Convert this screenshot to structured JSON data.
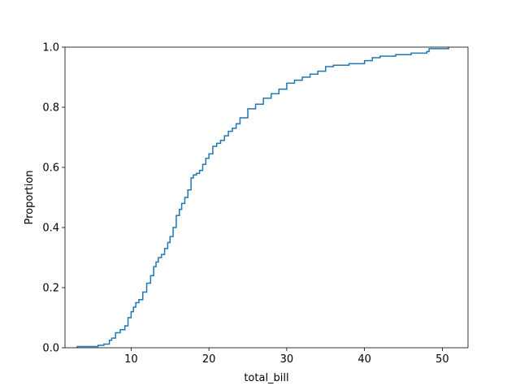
{
  "chart_data": {
    "type": "line",
    "subtype": "ecdf",
    "title": "",
    "xlabel": "total_bill",
    "ylabel": "Proportion",
    "xlim": [
      1.5,
      53.3
    ],
    "ylim": [
      0,
      1.0
    ],
    "xticks": [
      10,
      20,
      30,
      40,
      50
    ],
    "yticks": [
      0.0,
      0.2,
      0.4,
      0.6,
      0.8,
      1.0
    ],
    "xtick_labels": [
      "10",
      "20",
      "30",
      "40",
      "50"
    ],
    "ytick_labels": [
      "0.0",
      "0.2",
      "0.4",
      "0.6",
      "0.8",
      "1.0"
    ],
    "grid": false,
    "legend": "none",
    "line_color": "#1f77b4",
    "series": [
      {
        "x": [
          3.07,
          5.75,
          6.5,
          7.2,
          7.5,
          8.0,
          8.6,
          9.2,
          9.6,
          10.0,
          10.3,
          10.6,
          11.0,
          11.5,
          12.0,
          12.5,
          12.9,
          13.2,
          13.5,
          13.9,
          14.3,
          14.7,
          15.0,
          15.4,
          15.8,
          16.2,
          16.5,
          16.9,
          17.3,
          17.7,
          18.0,
          18.4,
          18.8,
          19.2,
          19.6,
          20.0,
          20.5,
          21.0,
          21.5,
          22.0,
          22.5,
          23.0,
          23.5,
          24.0,
          25.0,
          26.0,
          27.0,
          28.0,
          29.0,
          30.0,
          31.0,
          32.0,
          33.0,
          34.0,
          35.0,
          36.0,
          38.0,
          40.0,
          41.0,
          42.0,
          44.0,
          46.0,
          48.0,
          48.3,
          50.81
        ],
        "y": [
          0.004,
          0.008,
          0.012,
          0.025,
          0.032,
          0.05,
          0.06,
          0.073,
          0.1,
          0.12,
          0.135,
          0.15,
          0.16,
          0.185,
          0.215,
          0.24,
          0.27,
          0.285,
          0.3,
          0.31,
          0.33,
          0.35,
          0.37,
          0.4,
          0.44,
          0.46,
          0.48,
          0.5,
          0.525,
          0.565,
          0.575,
          0.58,
          0.59,
          0.61,
          0.63,
          0.645,
          0.67,
          0.68,
          0.69,
          0.705,
          0.72,
          0.73,
          0.745,
          0.765,
          0.795,
          0.81,
          0.83,
          0.845,
          0.86,
          0.88,
          0.89,
          0.9,
          0.91,
          0.92,
          0.935,
          0.94,
          0.945,
          0.955,
          0.965,
          0.97,
          0.975,
          0.98,
          0.985,
          0.995,
          1.0
        ]
      }
    ]
  }
}
